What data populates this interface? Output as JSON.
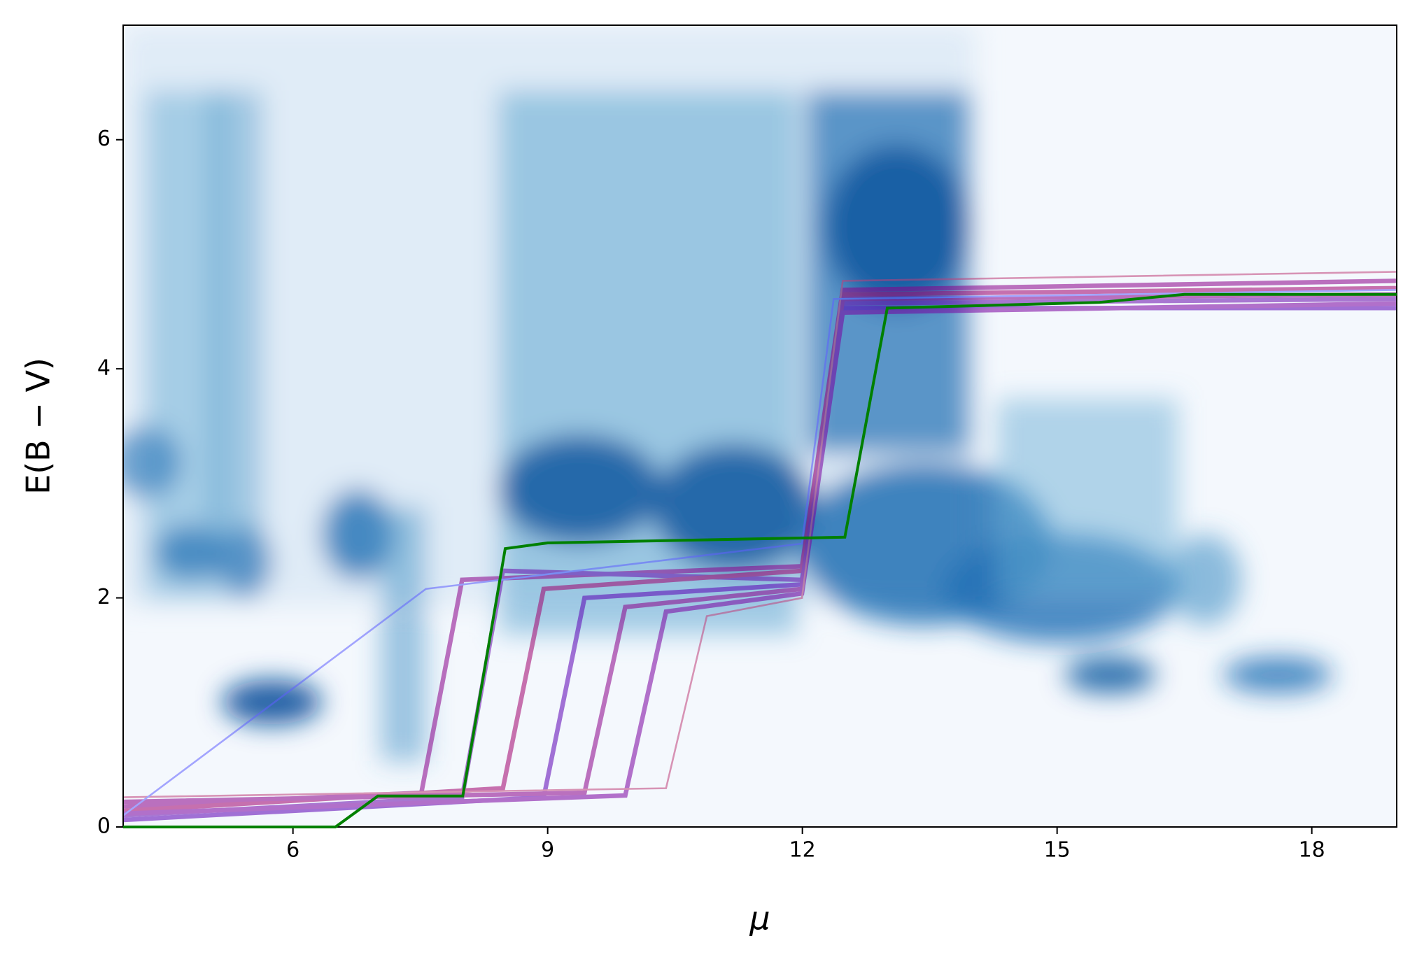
{
  "chart_data": {
    "type": "line",
    "x_label": "μ",
    "y_label": "E(B − V)",
    "xlim": [
      4,
      19
    ],
    "xticks": [
      6,
      9,
      12,
      15,
      18
    ],
    "ylim": [
      0,
      7
    ],
    "yticks": [
      0,
      2,
      4,
      6
    ],
    "series": [
      {
        "color": "#008000",
        "x": [
          4,
          6.5,
          7,
          8,
          8.5,
          9,
          12.5,
          13,
          15.5,
          16.5,
          19
        ],
        "values": [
          0,
          0,
          0.27,
          0.27,
          2.43,
          2.48,
          2.53,
          4.53,
          4.58,
          4.65,
          4.65
        ]
      }
    ]
  }
}
